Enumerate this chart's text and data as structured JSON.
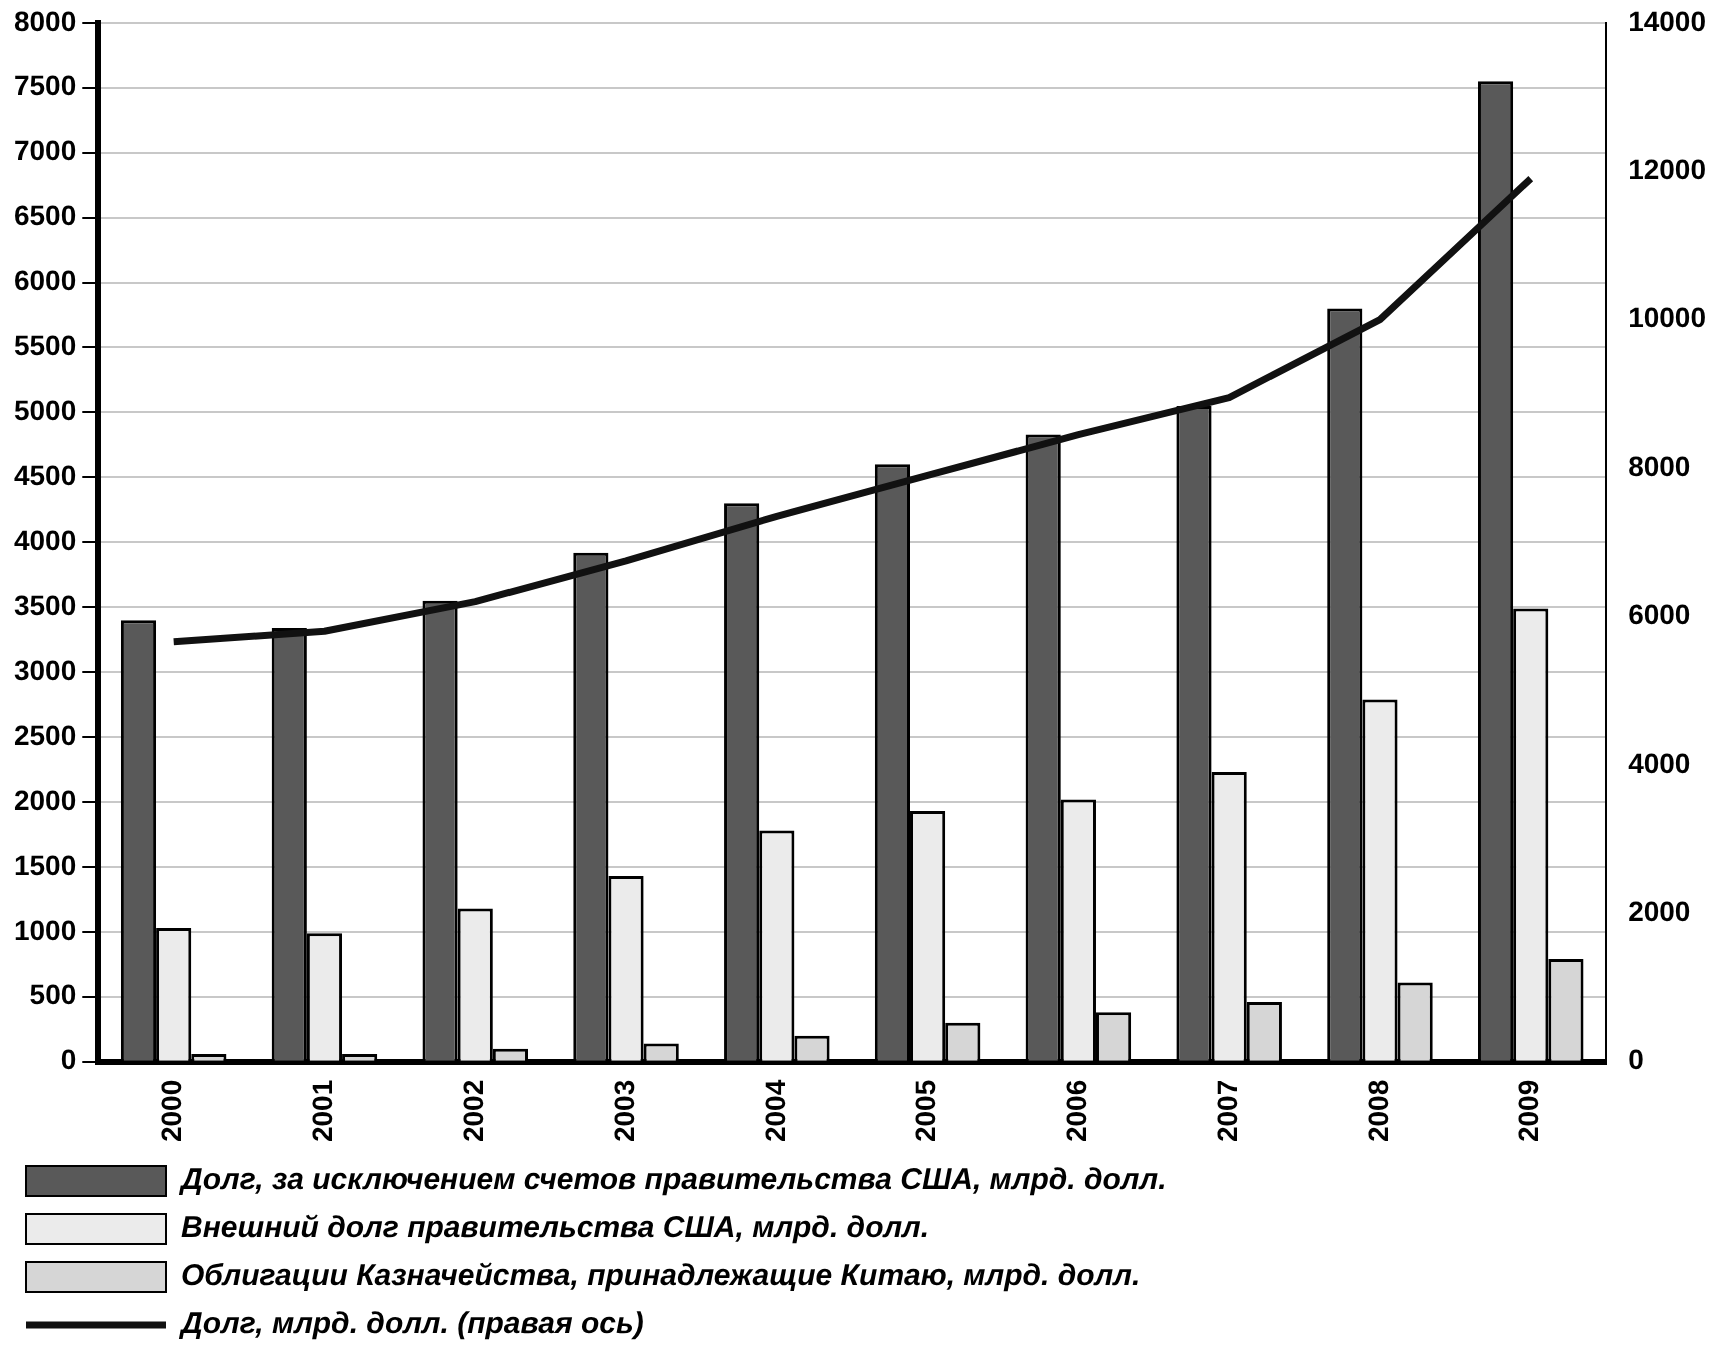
{
  "chart_data": {
    "type": "bar",
    "categories": [
      "2000",
      "2001",
      "2002",
      "2003",
      "2004",
      "2005",
      "2006",
      "2007",
      "2008",
      "2009"
    ],
    "series": [
      {
        "name": "Долг, за исключением счетов правительства США, млрд. долл.",
        "color": "#595959",
        "values": [
          3400,
          3340,
          3550,
          3920,
          4300,
          4600,
          4830,
          5050,
          5800,
          7550
        ]
      },
      {
        "name": "Внешний долг правительства США, млрд. долл.",
        "color": "#ebebeb",
        "values": [
          1030,
          990,
          1180,
          1430,
          1780,
          1930,
          2020,
          2230,
          2790,
          3490
        ]
      },
      {
        "name": "Облигации Казначейства, принадлежащие Китаю, млрд. долл.",
        "color": "#d6d6d6",
        "values": [
          60,
          60,
          100,
          140,
          200,
          300,
          380,
          460,
          610,
          790
        ]
      },
      {
        "name": "Долг, млрд. долл. (правая ось)",
        "type": "line",
        "axis": "y2",
        "color": "#111111",
        "values": [
          5660,
          5800,
          6200,
          6750,
          7350,
          7900,
          8450,
          8950,
          10000,
          11900
        ]
      }
    ],
    "ylim": [
      0,
      8000
    ],
    "yticks": [
      0,
      500,
      1000,
      1500,
      2000,
      2500,
      3000,
      3500,
      4000,
      4500,
      5000,
      5500,
      6000,
      6500,
      7000,
      7500,
      8000
    ],
    "y2lim": [
      0,
      14000
    ],
    "y2ticks": [
      0,
      2000,
      4000,
      6000,
      8000,
      10000,
      12000,
      14000
    ],
    "grid": "y",
    "legend": "bottom",
    "marker": "none",
    "line_style": "solid"
  }
}
